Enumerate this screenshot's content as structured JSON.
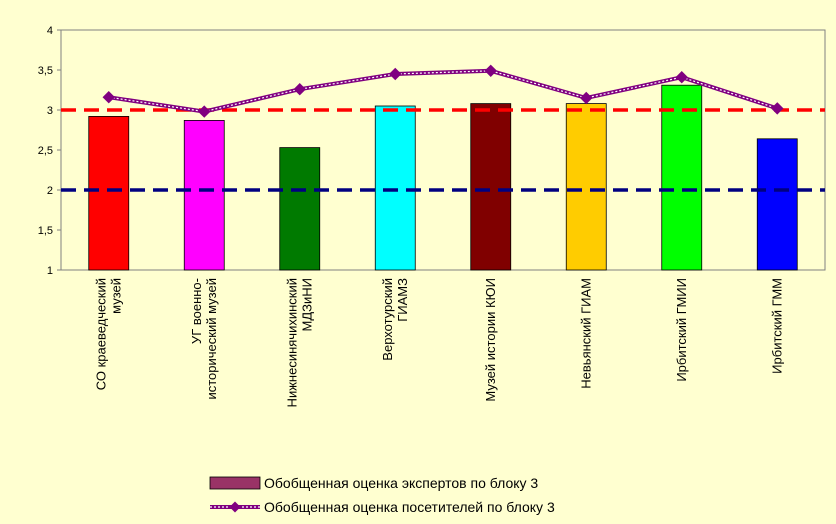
{
  "chart_data": {
    "type": "bar",
    "categories": [
      [
        "СО краеведческий",
        "музей"
      ],
      [
        "УГ военно-",
        "исторический музей"
      ],
      [
        "Нижнесинячихинский",
        "МДЗиНИ"
      ],
      [
        "Верхотурский",
        "ГИАМЗ"
      ],
      [
        "Музей истории КЮИ"
      ],
      [
        "Невьянский ГИАМ"
      ],
      [
        "Ирбитский ГМИИ"
      ],
      [
        "Ирбитский ГММ"
      ]
    ],
    "series": [
      {
        "name": "Обобщенная оценка экспертов по блоку 3",
        "type": "bar",
        "values": [
          2.92,
          2.87,
          2.53,
          3.05,
          3.08,
          3.08,
          3.31,
          2.64
        ],
        "colors": [
          "#ff0000",
          "#ff00ff",
          "#007a00",
          "#00ffff",
          "#800000",
          "#ffcc00",
          "#00ff00",
          "#0000ff"
        ],
        "legend_color": "#993366"
      },
      {
        "name": "Обобщенная оценка посетителей по блоку 3",
        "type": "line",
        "values": [
          3.16,
          2.98,
          3.26,
          3.45,
          3.49,
          3.15,
          3.41,
          3.02
        ],
        "color": "#800080"
      }
    ],
    "reference_lines": [
      {
        "value": 3,
        "color": "#ff0000"
      },
      {
        "value": 2,
        "color": "#000080"
      }
    ],
    "ylim": [
      1,
      4
    ],
    "yticks": [
      "1",
      "1,5",
      "2",
      "2,5",
      "3",
      "3,5",
      "4"
    ],
    "ytick_values": [
      1,
      1.5,
      2,
      2.5,
      3,
      3.5,
      4
    ],
    "grid": false,
    "legend_position": "bottom",
    "plot_background": "#ffffd0",
    "title": "",
    "xlabel": "",
    "ylabel": ""
  }
}
